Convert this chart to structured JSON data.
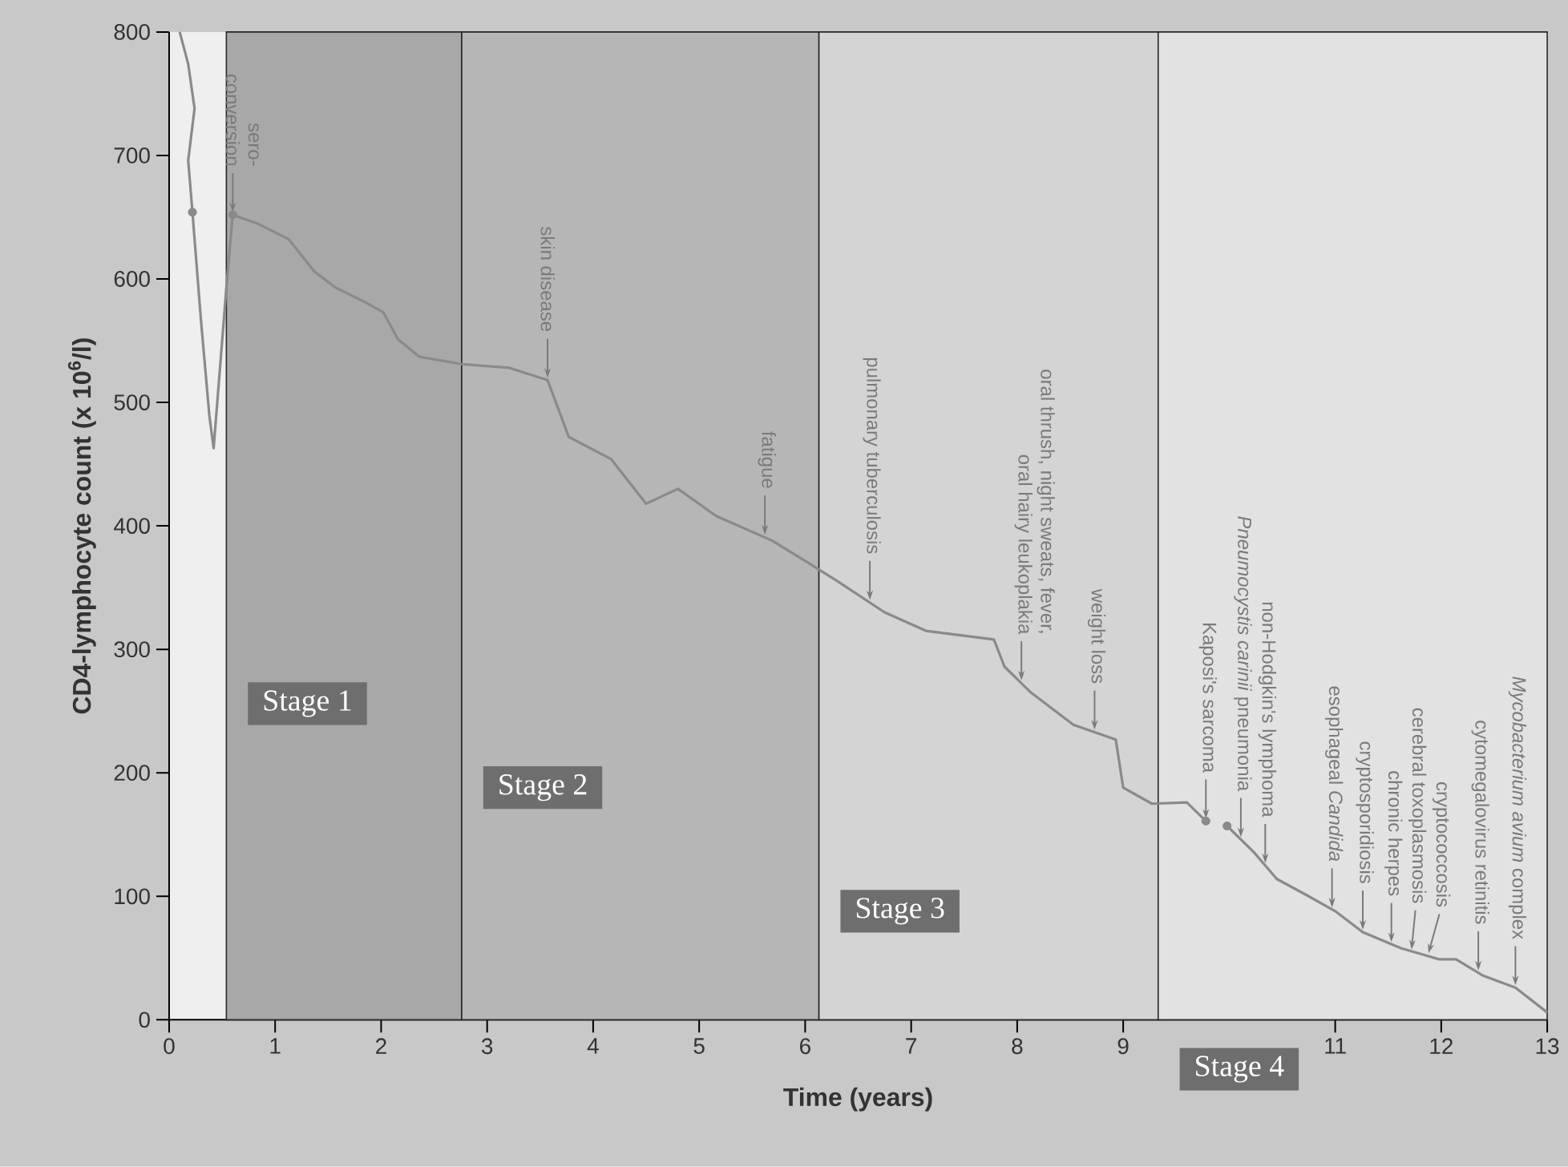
{
  "chart_data": {
    "type": "line",
    "xlabel": "Time (years)",
    "ylabel": "CD4-lymphocyte count (x 10$^{6}$/l)",
    "xlim": [
      0,
      13
    ],
    "xticks": [
      0,
      1,
      2,
      3,
      4,
      5,
      6,
      7,
      8,
      9,
      11,
      12,
      13
    ],
    "ylim": [
      0,
      800
    ],
    "yticks": [
      0,
      100,
      200,
      300,
      400,
      500,
      600,
      700,
      800
    ],
    "series": [
      {
        "color": "#8a8a8a",
        "x": [
          0.1,
          0.18,
          0.24,
          0.18,
          0.22,
          0.3,
          0.38,
          0.42,
          0.54,
          0.6,
          0.83,
          1.13,
          1.37,
          1.57,
          1.83,
          2.02,
          2.16,
          2.36,
          2.76,
          3.21,
          3.57,
          3.77,
          4.17,
          4.5,
          4.8,
          5.16,
          5.69,
          6.05,
          6.29,
          6.75,
          7.14,
          7.78,
          7.88,
          8.13,
          8.53,
          8.93,
          9.0,
          9.27,
          9.6,
          9.78,
          9.9,
          9.98,
          10.23,
          10.45,
          10.73,
          11.0,
          11.26,
          11.62,
          11.98,
          12.14,
          12.39,
          12.7,
          13.0
        ],
        "values": [
          800,
          774,
          738,
          696,
          654,
          567,
          489,
          463,
          593,
          652,
          645,
          632,
          606,
          593,
          582,
          573,
          551,
          537,
          531,
          528,
          518,
          472,
          454,
          418,
          430,
          408,
          388,
          369,
          356,
          330,
          315,
          308,
          286,
          265,
          239,
          227,
          188,
          175,
          176,
          161,
          null,
          157,
          136,
          114,
          101,
          88,
          71,
          58,
          49,
          49,
          36,
          26,
          6
        ]
      },
      {
        "type": "scatter",
        "color": "#8a8a8a",
        "x": [
          0.22,
          0.6,
          9.78,
          9.98
        ],
        "values": [
          654,
          652,
          161,
          157
        ]
      }
    ],
    "bands": [
      {
        "axis": "x",
        "from": 0.54,
        "to": 2.76,
        "label": "Stage 1",
        "color": "#a8a8a8"
      },
      {
        "axis": "x",
        "from": 2.76,
        "to": 6.13,
        "label": "Stage 2",
        "color": "#b6b6b6"
      },
      {
        "axis": "x",
        "from": 6.13,
        "to": 9.33,
        "label": "Stage 3",
        "color": "#d4d4d4"
      },
      {
        "axis": "x",
        "from": 9.33,
        "to": 13,
        "label": "Stage 4",
        "color": "#e2e2e2"
      }
    ],
    "annotations": [
      {
        "text": "sero-conversion",
        "x": 0.6,
        "y": 652
      },
      {
        "text": "skin disease",
        "x": 3.57,
        "y": 518
      },
      {
        "text": "fatigue",
        "x": 5.62,
        "y": 391
      },
      {
        "text": "pulmonary tuberculosis",
        "x": 6.61,
        "y": 338
      },
      {
        "text": "oral thrush, night sweats, fever, oral hairy leukoplakia",
        "x": 8.04,
        "y": 273
      },
      {
        "text": "weight loss",
        "x": 8.73,
        "y": 233
      },
      {
        "text": "Kaposi's sarcoma",
        "x": 9.78,
        "y": 161
      },
      {
        "text": "*Pneumocystis carinii* pneumonia",
        "x": 10.11,
        "y": 146
      },
      {
        "text": "non-Hodgkin's lymphoma",
        "x": 10.34,
        "y": 125
      },
      {
        "text": "esophageal *Candida*",
        "x": 10.97,
        "y": 89
      },
      {
        "text": "cryptosporidiosis",
        "x": 11.26,
        "y": 71
      },
      {
        "text": "chronic herpes",
        "x": 11.53,
        "y": 61
      },
      {
        "text": "cerebral toxoplasmosis",
        "x": 11.72,
        "y": 55
      },
      {
        "text": "cryptococcosis",
        "x": 11.88,
        "y": 52
      },
      {
        "text": "cytomegalovirus retinitis",
        "x": 12.35,
        "y": 38
      },
      {
        "text": "*Mycobacterium avium* complex",
        "x": 12.7,
        "y": 26
      }
    ]
  }
}
